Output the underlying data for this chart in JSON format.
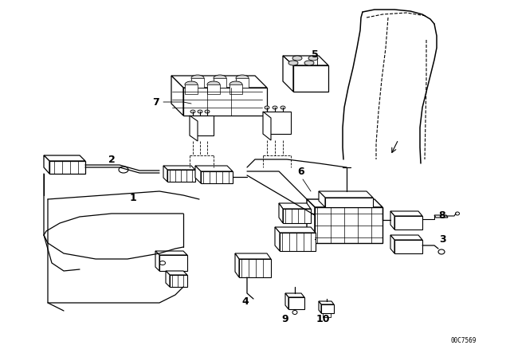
{
  "bg_color": "#ffffff",
  "line_color": "#000000",
  "fig_width": 6.4,
  "fig_height": 4.48,
  "dpi": 100,
  "diagram_code": "00C7569"
}
